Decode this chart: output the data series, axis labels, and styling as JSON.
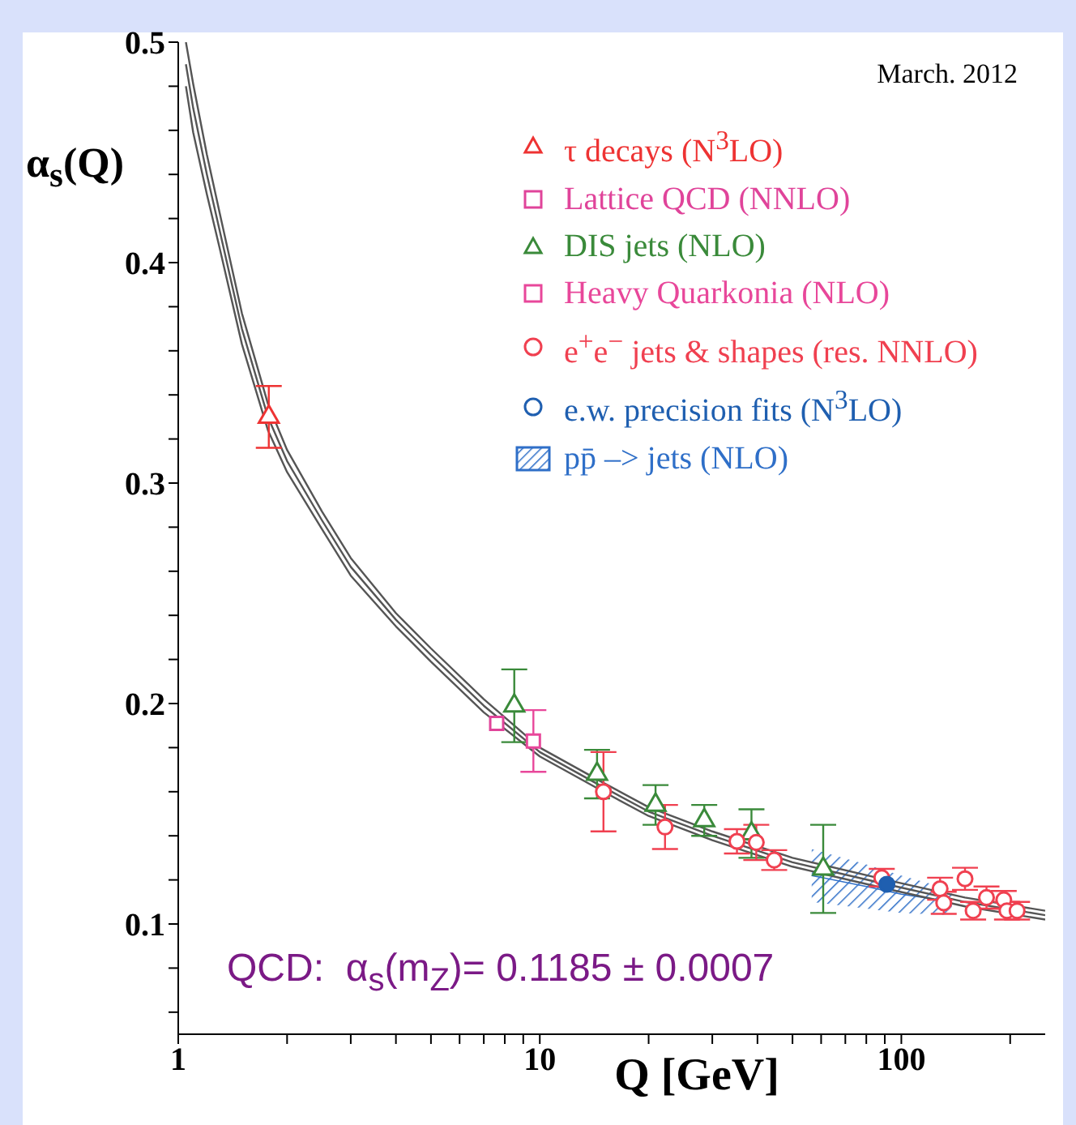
{
  "chart_data": {
    "type": "scatter",
    "ylabel": "α$_{s}$(Q)",
    "xlabel": "Q [GeV]",
    "log": "x",
    "xlim": [
      1,
      250
    ],
    "ylim": [
      0.05,
      0.5
    ],
    "xticks": [
      1,
      {
        "value": 2,
        "label": null
      },
      {
        "value": 3,
        "label": null
      },
      {
        "value": 4,
        "label": null
      },
      {
        "value": 5,
        "label": null
      },
      {
        "value": 6,
        "label": null
      },
      {
        "value": 7,
        "label": null
      },
      {
        "value": 8,
        "label": null
      },
      {
        "value": 9,
        "label": null
      },
      10,
      {
        "value": 20,
        "label": null
      },
      {
        "value": 30,
        "label": null
      },
      {
        "value": 40,
        "label": null
      },
      {
        "value": 50,
        "label": null
      },
      {
        "value": 60,
        "label": null
      },
      {
        "value": 70,
        "label": null
      },
      {
        "value": 80,
        "label": null
      },
      {
        "value": 90,
        "label": null
      },
      100,
      {
        "value": 200,
        "label": null
      }
    ],
    "yticks": [
      {
        "value": 0.06,
        "label": null
      },
      {
        "value": 0.08,
        "label": null
      },
      0.1,
      {
        "value": 0.12,
        "label": null
      },
      {
        "value": 0.14,
        "label": null
      },
      {
        "value": 0.16,
        "label": null
      },
      {
        "value": 0.18,
        "label": null
      },
      0.2,
      {
        "value": 0.22,
        "label": null
      },
      {
        "value": 0.24,
        "label": null
      },
      {
        "value": 0.26,
        "label": null
      },
      {
        "value": 0.28,
        "label": null
      },
      0.3,
      {
        "value": 0.32,
        "label": null
      },
      {
        "value": 0.34,
        "label": null
      },
      {
        "value": 0.36,
        "label": null
      },
      {
        "value": 0.38,
        "label": null
      },
      0.4,
      {
        "value": 0.42,
        "label": null
      },
      {
        "value": 0.44,
        "label": null
      },
      {
        "value": 0.46,
        "label": null
      },
      {
        "value": 0.48,
        "label": null
      },
      0.5
    ],
    "legend": "top right",
    "annotations": [
      "March. 2012",
      "QCD:  α$_{s}$(m$_{Z}$)= 0.1185 ± 0.0007"
    ],
    "series": [
      {
        "type": "line",
        "color": "#555555",
        "x": [
          1.05,
          1.1,
          1.2,
          1.3,
          1.5,
          1.77,
          2,
          2.5,
          3,
          4,
          5,
          7,
          10,
          15,
          20,
          30,
          50,
          91,
          150,
          250
        ],
        "values": [
          0.49,
          0.47,
          0.44,
          0.415,
          0.37,
          0.33,
          0.31,
          0.283,
          0.262,
          0.238,
          0.222,
          0.199,
          0.178,
          0.162,
          0.151,
          0.14,
          0.128,
          0.118,
          0.11,
          0.104
        ]
      },
      {
        "type": "line",
        "color": "#555555",
        "x": [
          1.05,
          1.1,
          1.2,
          1.3,
          1.5,
          1.77,
          2,
          2.5,
          3,
          4,
          5,
          7,
          10,
          15,
          20,
          30,
          50,
          91,
          150,
          250
        ],
        "values": [
          0.48,
          0.459,
          0.431,
          0.407,
          0.363,
          0.324,
          0.305,
          0.279,
          0.258,
          0.235,
          0.219,
          0.196,
          0.176,
          0.16,
          0.149,
          0.138,
          0.126,
          0.116,
          0.108,
          0.102
        ]
      },
      {
        "type": "line",
        "color": "#555555",
        "x": [
          1.05,
          1.1,
          1.2,
          1.3,
          1.5,
          1.77,
          2,
          2.5,
          3,
          4,
          5,
          7,
          10,
          15,
          20,
          30,
          50,
          91,
          150,
          250
        ],
        "values": [
          0.5,
          0.481,
          0.449,
          0.423,
          0.377,
          0.336,
          0.315,
          0.287,
          0.266,
          0.241,
          0.225,
          0.202,
          0.18,
          0.164,
          0.153,
          0.142,
          0.13,
          0.12,
          0.112,
          0.106
        ]
      },
      {
        "name": "τ decays (N$^{3}$LO)",
        "color": "#ee3333",
        "marker": "triangle",
        "x": [
          1.78
        ],
        "values": [
          0.33
        ],
        "errors": [
          0.014
        ]
      },
      {
        "name": "Lattice QCD (NNLO)",
        "color": "#e0449a",
        "marker": "square",
        "x": [
          7.6
        ],
        "values": [
          0.191
        ],
        "errors": [
          null
        ]
      },
      {
        "name": "DIS jets (NLO)",
        "color": "#3a8a3a",
        "marker": "triangle",
        "x": [
          8.5,
          14.4,
          20.9,
          28.5,
          38.5,
          60.8
        ],
        "values": [
          0.199,
          0.168,
          0.154,
          0.147,
          0.141,
          0.125
        ],
        "errors": [
          0.0165,
          0.011,
          0.009,
          0.007,
          0.011,
          0.02
        ]
      },
      {
        "name": "Heavy Quarkonia (NLO)",
        "color": "#e8479a",
        "marker": "square",
        "x": [
          9.6
        ],
        "values": [
          0.183
        ],
        "errors": [
          0.014
        ]
      },
      {
        "name": "e$^{+}$e$^{−}$ jets & shapes (res. NNLO)",
        "color": "#f04050",
        "marker": "circle",
        "x": [
          15,
          22.2,
          35.1,
          39.7,
          44.5,
          88.3,
          128,
          131,
          150,
          158,
          172,
          192,
          196,
          209
        ],
        "values": [
          0.16,
          0.144,
          0.1375,
          0.137,
          0.129,
          0.121,
          0.116,
          0.1096,
          0.1205,
          0.106,
          0.112,
          0.111,
          0.106,
          0.106
        ],
        "errors": [
          0.018,
          0.01,
          0.0055,
          0.008,
          0.0045,
          0.004,
          0.005,
          0.005,
          0.005,
          0.004,
          0.005,
          0.004,
          0.004,
          0.004
        ]
      },
      {
        "name": "e.w. precision fits (N$^{3}$LO)",
        "color": "#1f5fb0",
        "marker": "circle",
        "x": [
          91.2
        ],
        "values": [
          0.118
        ],
        "errors": [
          null
        ]
      },
      {
        "name": "pp̄ –> jets (NLO)",
        "type": "line",
        "color": "#2f6fc8",
        "x": [
          56.5,
          80,
          100,
          138
        ],
        "values": [
          0.122,
          0.117,
          0.1135,
          0.11
        ],
        "lower": [
          0.11,
          0.107,
          0.105,
          0.104
        ],
        "upper": [
          0.134,
          0.127,
          0.122,
          0.1155
        ]
      }
    ]
  }
}
